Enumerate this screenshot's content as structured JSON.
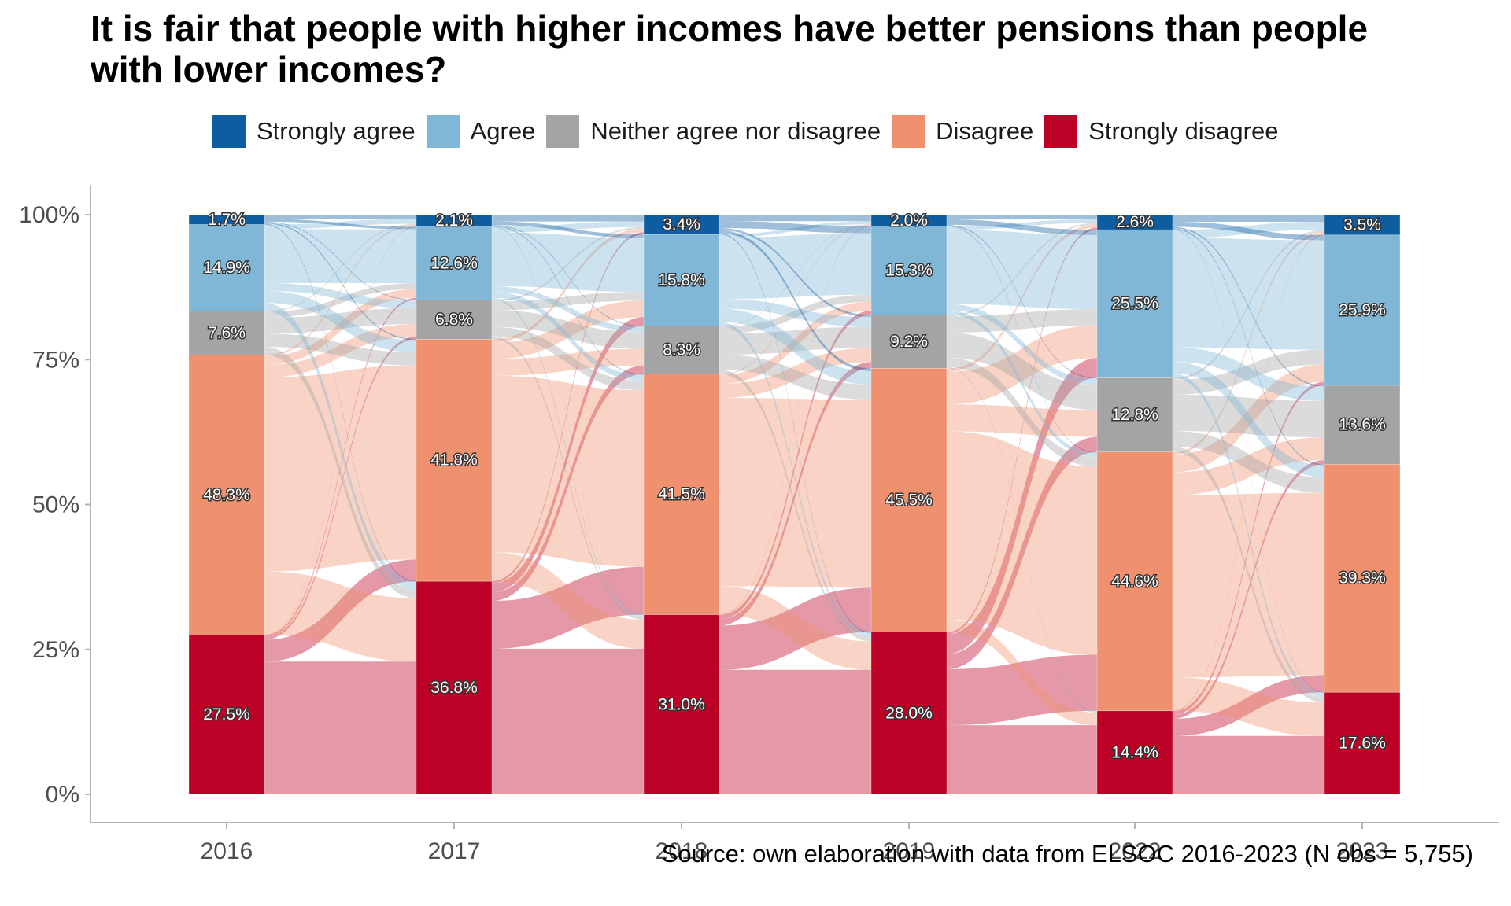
{
  "title": "It is fair that people with higher incomes have better pensions than people\nwith lower incomes?",
  "source": "Source: own elaboration with data from ELSOC 2016-2023 (N obs = 5,755)",
  "chart_data": {
    "type": "alluvial stacked bar",
    "title": "It is fair that people with higher incomes have better pensions than people with lower incomes?",
    "xlabel": "",
    "ylabel": "",
    "ylim": [
      0,
      100
    ],
    "y_ticks": [
      "0%",
      "25%",
      "50%",
      "75%",
      "100%"
    ],
    "y_tick_values": [
      0,
      25,
      50,
      75,
      100
    ],
    "legend_position": "top",
    "categories": [
      "2016",
      "2017",
      "2018",
      "2019",
      "2022",
      "2023"
    ],
    "series": [
      {
        "name": "Strongly disagree",
        "color": "#bd0026",
        "values": [
          27.5,
          36.8,
          31.0,
          28.0,
          14.4,
          17.6
        ]
      },
      {
        "name": "Disagree",
        "color": "#ef916e",
        "values": [
          48.3,
          41.8,
          41.5,
          45.5,
          44.6,
          39.3
        ]
      },
      {
        "name": "Neither agree nor disagree",
        "color": "#a4a4a4",
        "values": [
          7.6,
          6.8,
          8.3,
          9.2,
          12.8,
          13.6
        ]
      },
      {
        "name": "Agree",
        "color": "#80b6d6",
        "values": [
          14.9,
          12.6,
          15.8,
          15.3,
          25.5,
          25.9
        ]
      },
      {
        "name": "Strongly agree",
        "color": "#0f5da1",
        "values": [
          1.7,
          2.1,
          3.4,
          2.0,
          2.6,
          3.5
        ]
      }
    ],
    "legend": [
      "Strongly agree",
      "Agree",
      "Neither agree nor disagree",
      "Disagree",
      "Strongly disagree"
    ],
    "bar_labels": [
      [
        "27.5%",
        "48.3%",
        "7.6%",
        "14.9%",
        "1.7%"
      ],
      [
        "36.8%",
        "41.8%",
        "6.8%",
        "12.6%",
        "2.1%"
      ],
      [
        "31.0%",
        "41.5%",
        "8.3%",
        "15.8%",
        "3.4%"
      ],
      [
        "28.0%",
        "45.5%",
        "9.2%",
        "15.3%",
        "2.0%"
      ],
      [
        "14.4%",
        "44.6%",
        "12.8%",
        "25.5%",
        "2.6%"
      ],
      [
        "17.6%",
        "39.3%",
        "13.6%",
        "25.9%",
        "3.5%"
      ]
    ],
    "flow_stay_share": 0.45
  }
}
